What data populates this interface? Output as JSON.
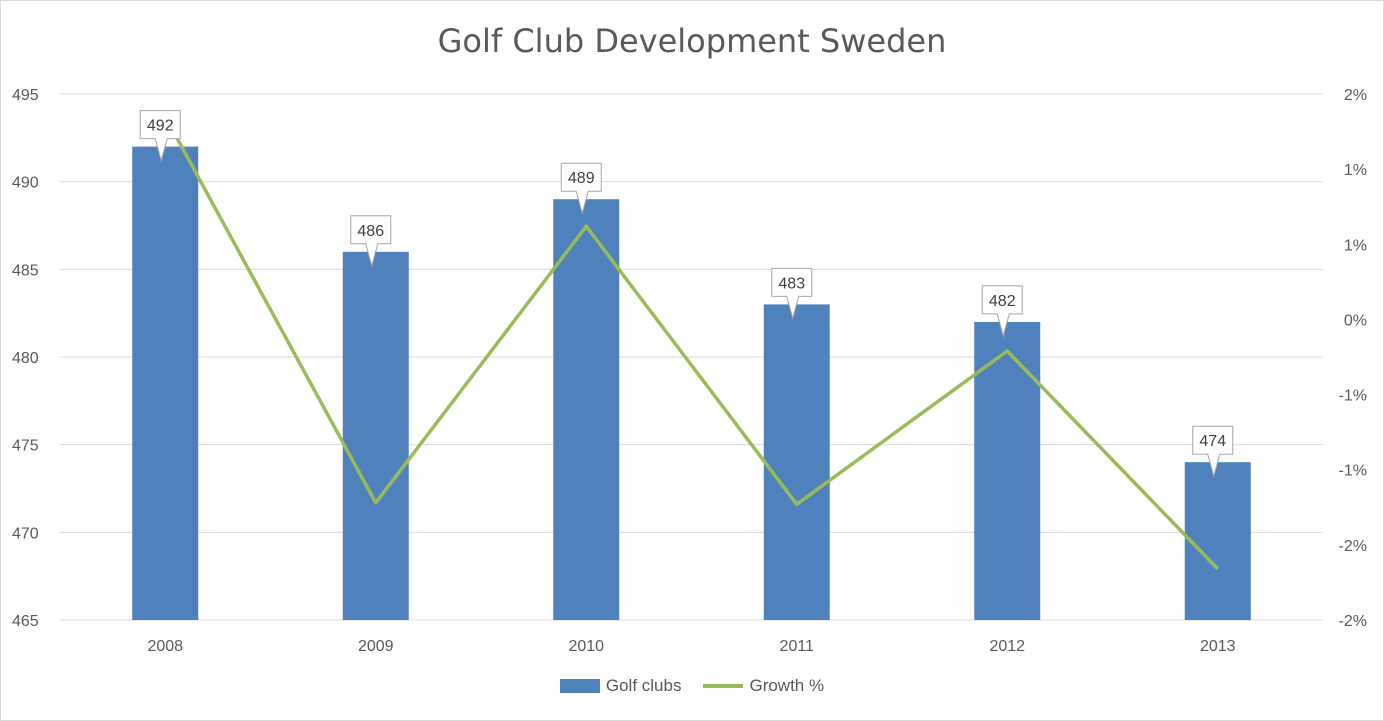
{
  "chart_data": {
    "type": "bar",
    "title": "Golf Club Development Sweden",
    "categories": [
      "2008",
      "2009",
      "2010",
      "2011",
      "2012",
      "2013"
    ],
    "series": [
      {
        "name": "Golf clubs",
        "type": "bar",
        "axis": "left",
        "color": "#4f81bd",
        "values": [
          492,
          486,
          489,
          483,
          482,
          474
        ]
      },
      {
        "name": "Growth %",
        "type": "line",
        "axis": "right",
        "color": "#9bbb59",
        "values": [
          1.35,
          -1.22,
          0.62,
          -1.23,
          -0.21,
          -1.66
        ]
      }
    ],
    "y_left": {
      "min": 465,
      "max": 495,
      "ticks": [
        "465",
        "470",
        "475",
        "480",
        "485",
        "490",
        "495"
      ]
    },
    "y_right": {
      "min": -2,
      "max": 1.5,
      "ticks": [
        "-2%",
        "-2%",
        "-1%",
        "-1%",
        "0%",
        "1%",
        "1%",
        "2%"
      ]
    },
    "data_labels": [
      "492",
      "486",
      "489",
      "483",
      "482",
      "474"
    ],
    "grid": true,
    "legend_position": "bottom"
  }
}
